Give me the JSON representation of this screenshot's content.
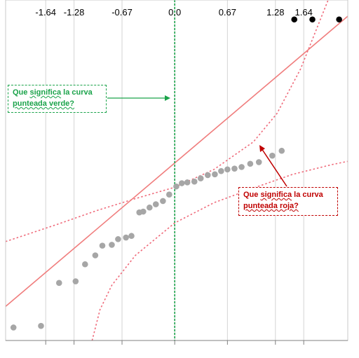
{
  "chart_data": {
    "type": "scatter",
    "title": "",
    "xlabel": "",
    "ylabel": "",
    "x_ticks": [
      -1.64,
      -1.28,
      -0.67,
      0.0,
      0.67,
      1.28,
      1.64
    ],
    "x_tick_labels": [
      "-1.64",
      "-1.28",
      "-0.67",
      "0.0",
      "0.67",
      "1.28",
      "1.64"
    ],
    "grid": true,
    "xlim": [
      -2.15,
      2.2
    ],
    "ylim": [
      -2.0,
      2.2
    ],
    "series": [
      {
        "points": [
          [
            -2.05,
            -1.84
          ],
          [
            -1.7,
            -1.82
          ],
          [
            -1.47,
            -1.29
          ],
          [
            -1.26,
            -1.27
          ],
          [
            -1.14,
            -1.06
          ],
          [
            -1.01,
            -0.95
          ],
          [
            -0.92,
            -0.83
          ],
          [
            -0.8,
            -0.82
          ],
          [
            -0.72,
            -0.75
          ],
          [
            -0.62,
            -0.73
          ],
          [
            -0.55,
            -0.71
          ],
          [
            -0.45,
            -0.42
          ],
          [
            -0.4,
            -0.41
          ],
          [
            -0.32,
            -0.36
          ],
          [
            -0.24,
            -0.32
          ],
          [
            -0.15,
            -0.28
          ],
          [
            -0.07,
            -0.2
          ],
          [
            0.02,
            -0.1
          ],
          [
            0.09,
            -0.06
          ],
          [
            0.16,
            -0.05
          ],
          [
            0.25,
            -0.04
          ],
          [
            0.33,
            0.0
          ],
          [
            0.42,
            0.04
          ],
          [
            0.51,
            0.05
          ],
          [
            0.59,
            0.09
          ],
          [
            0.67,
            0.11
          ],
          [
            0.76,
            0.12
          ],
          [
            0.85,
            0.14
          ],
          [
            0.96,
            0.18
          ],
          [
            1.07,
            0.2
          ],
          [
            1.24,
            0.28
          ],
          [
            1.36,
            0.34
          ]
        ],
        "color": "#a6a6a6"
      },
      {
        "points": [
          [
            1.52,
            1.96
          ],
          [
            1.75,
            1.96
          ],
          [
            2.09,
            1.96
          ]
        ],
        "color": "#000000"
      }
    ],
    "fit_line": {
      "x": [
        -2.15,
        2.2
      ],
      "y": [
        -1.58,
        2.0
      ],
      "color": "#f07d7d"
    },
    "confidence_band": {
      "color": "#ef6a7a",
      "upper": {
        "x": [
          -2.15,
          -1.5,
          -1.0,
          -0.5,
          0.0,
          0.5,
          1.0,
          1.3,
          1.6,
          1.95
        ],
        "y": [
          -0.78,
          -0.57,
          -0.4,
          -0.25,
          -0.11,
          0.11,
          0.45,
          0.8,
          1.35,
          2.2
        ]
      },
      "lower": {
        "x": [
          -1.05,
          -0.95,
          -0.8,
          -0.5,
          0.0,
          0.5,
          1.0,
          1.5,
          2.0,
          2.2
        ],
        "y": [
          -2.0,
          -1.62,
          -1.32,
          -0.95,
          -0.55,
          -0.3,
          -0.12,
          0.05,
          0.17,
          0.21
        ]
      }
    },
    "reference_line": {
      "x": 0.0,
      "color": "#1aa34a"
    }
  },
  "annotations": {
    "green_box": {
      "line1": "Que ",
      "w1": "significa",
      "mid1": " la curva",
      "line2": "punteada verde?",
      "color": "#1aa34a"
    },
    "red_box": {
      "line1": "Que ",
      "w1": "significa",
      "mid1": " la curva",
      "line2": "punteada roja?",
      "color": "#c00000"
    }
  }
}
